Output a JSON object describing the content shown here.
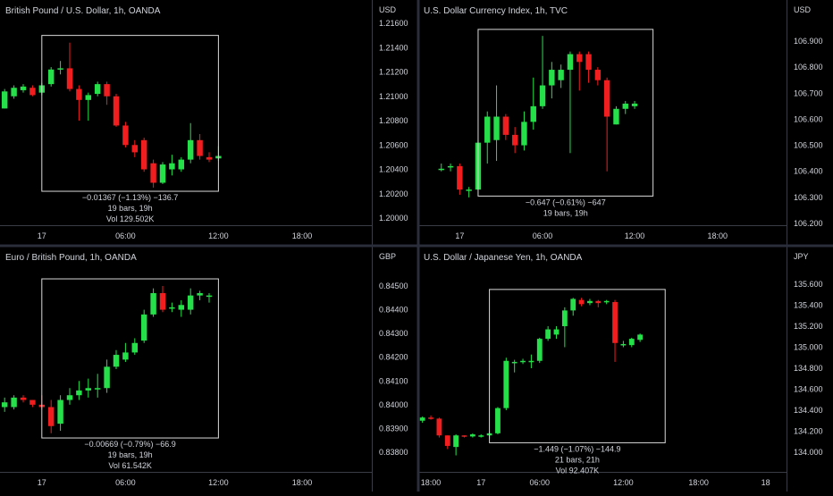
{
  "colors": {
    "background": "#000000",
    "text": "#d1d4dc",
    "axis_line": "#3a3d46",
    "divider": "#2a2d3a",
    "up": "#26e04a",
    "down": "#f01e1e",
    "box": "#d9d9d9"
  },
  "chart_data": [
    {
      "type": "candlestick",
      "title": "British Pound / U.S. Dollar, 1h, OANDA",
      "currency": "USD",
      "ylim": [
        1.198,
        1.218
      ],
      "yticks": [
        "1.21600",
        "1.21400",
        "1.21200",
        "1.21000",
        "1.20800",
        "1.20600",
        "1.20400",
        "1.20200",
        "1.20000"
      ],
      "ytick_values": [
        1.216,
        1.214,
        1.212,
        1.21,
        1.208,
        1.206,
        1.204,
        1.202,
        1.2
      ],
      "xticks": [
        "17",
        "06:00",
        "12:00",
        "18:00"
      ],
      "xtick_index": [
        4,
        13,
        23,
        32
      ],
      "n_slots": 40,
      "candles": [
        [
          1.209,
          1.2104,
          1.209,
          1.2106
        ],
        [
          1.21,
          1.2107,
          1.2098,
          1.2109
        ],
        [
          1.2105,
          1.2108,
          1.2103,
          1.211
        ],
        [
          1.2107,
          1.2101,
          1.21,
          1.2109
        ],
        [
          1.2103,
          1.2109,
          1.2101,
          1.2111
        ],
        [
          1.211,
          1.2122,
          1.2108,
          1.2124
        ],
        [
          1.2122,
          1.2123,
          1.2118,
          1.2129
        ],
        [
          1.2123,
          1.2106,
          1.2104,
          1.2144
        ],
        [
          1.2106,
          1.2097,
          1.208,
          1.2109
        ],
        [
          1.2097,
          1.2101,
          1.208,
          1.2103
        ],
        [
          1.2102,
          1.211,
          1.21,
          1.2112
        ],
        [
          1.211,
          1.21,
          1.2093,
          1.2112
        ],
        [
          1.21,
          1.2076,
          1.2075,
          1.2102
        ],
        [
          1.2076,
          1.206,
          1.2058,
          1.2079
        ],
        [
          1.206,
          1.2054,
          1.205,
          1.2064
        ],
        [
          1.2064,
          1.204,
          1.2038,
          1.2066
        ],
        [
          1.2045,
          1.2029,
          1.2025,
          1.2048
        ],
        [
          1.2029,
          1.2044,
          1.2028,
          1.2046
        ],
        [
          1.204,
          1.2045,
          1.2035,
          1.2052
        ],
        [
          1.204,
          1.2048,
          1.2038,
          1.205
        ],
        [
          1.2048,
          1.2064,
          1.2045,
          1.2078
        ],
        [
          1.2064,
          1.2051,
          1.2048,
          1.2069
        ],
        [
          1.205,
          1.2048,
          1.2046,
          1.2054
        ],
        [
          1.2049,
          1.2051,
          1.2047,
          1.2059
        ]
      ],
      "candle_start_slot": 0,
      "measure": {
        "box_slots": [
          4,
          23
        ],
        "box_prices": [
          1.2022,
          1.215
        ],
        "lines": [
          "−0.01367 (−1.13%) −136.7",
          "19 bars, 19h",
          "Vol 129.502K"
        ]
      }
    },
    {
      "type": "candlestick",
      "title": "U.S. Dollar Currency Index, 1h, TVC",
      "currency": "USD",
      "ylim": [
        106.19,
        107.02
      ],
      "yticks": [
        "106.900",
        "106.800",
        "106.700",
        "106.600",
        "106.500",
        "106.400",
        "106.300",
        "106.200"
      ],
      "ytick_values": [
        106.9,
        106.8,
        106.7,
        106.6,
        106.5,
        106.4,
        106.3,
        106.2
      ],
      "xticks": [
        "17",
        "06:00",
        "12:00",
        "18:00"
      ],
      "xtick_index": [
        4,
        13,
        23,
        32
      ],
      "n_slots": 40,
      "candles": [
        [
          106.41,
          106.41,
          106.4,
          106.43
        ],
        [
          106.42,
          106.42,
          106.4,
          106.43
        ],
        [
          106.42,
          106.33,
          106.31,
          106.43
        ],
        [
          106.33,
          106.33,
          106.3,
          106.34
        ],
        [
          106.33,
          106.51,
          106.33,
          106.52
        ],
        [
          106.51,
          106.61,
          106.43,
          106.63
        ],
        [
          106.52,
          106.61,
          106.44,
          106.73
        ],
        [
          106.61,
          106.54,
          106.52,
          106.62
        ],
        [
          106.54,
          106.5,
          106.47,
          106.57
        ],
        [
          106.5,
          106.59,
          106.48,
          106.63
        ],
        [
          106.59,
          106.65,
          106.56,
          106.76
        ],
        [
          106.65,
          106.73,
          106.64,
          106.92
        ],
        [
          106.73,
          106.79,
          106.68,
          106.82
        ],
        [
          106.75,
          106.79,
          106.72,
          106.81
        ],
        [
          106.79,
          106.85,
          106.47,
          106.86
        ],
        [
          106.85,
          106.82,
          106.71,
          106.86
        ],
        [
          106.85,
          106.79,
          106.74,
          106.86
        ],
        [
          106.79,
          106.75,
          106.73,
          106.8
        ],
        [
          106.75,
          106.61,
          106.4,
          106.76
        ],
        [
          106.58,
          106.64,
          106.58,
          106.65
        ],
        [
          106.64,
          106.66,
          106.62,
          106.67
        ],
        [
          106.65,
          106.66,
          106.64,
          106.67
        ]
      ],
      "candle_start_slot": 2,
      "measure": {
        "box_slots": [
          6,
          25
        ],
        "box_prices": [
          106.305,
          106.945
        ],
        "lines": [
          "−0.647 (−0.61%) −647",
          "19 bars, 19h"
        ]
      }
    },
    {
      "type": "candlestick",
      "title": "Euro / British Pound, 1h, OANDA",
      "currency": "GBP",
      "ylim": [
        0.8375,
        0.8454
      ],
      "yticks": [
        "0.84500",
        "0.84400",
        "0.84300",
        "0.84200",
        "0.84100",
        "0.84000",
        "0.83900",
        "0.83800"
      ],
      "ytick_values": [
        0.845,
        0.844,
        0.843,
        0.842,
        0.841,
        0.84,
        0.839,
        0.838
      ],
      "xticks": [
        "17",
        "06:00",
        "12:00",
        "18:00"
      ],
      "xtick_index": [
        4,
        13,
        23,
        32
      ],
      "n_slots": 40,
      "candles": [
        [
          0.8399,
          0.8401,
          0.8397,
          0.8403
        ],
        [
          0.8399,
          0.8403,
          0.8398,
          0.8404
        ],
        [
          0.8403,
          0.8402,
          0.8401,
          0.8404
        ],
        [
          0.8402,
          0.84,
          0.8399,
          0.8402
        ],
        [
          0.84,
          0.8399,
          0.8398,
          0.8404
        ],
        [
          0.8399,
          0.8391,
          0.8388,
          0.8402
        ],
        [
          0.8392,
          0.8402,
          0.8389,
          0.8404
        ],
        [
          0.8402,
          0.8404,
          0.84,
          0.8407
        ],
        [
          0.8404,
          0.8406,
          0.8402,
          0.841
        ],
        [
          0.8406,
          0.8407,
          0.8403,
          0.8411
        ],
        [
          0.8407,
          0.8407,
          0.8403,
          0.8413
        ],
        [
          0.8407,
          0.8416,
          0.8405,
          0.8419
        ],
        [
          0.8416,
          0.8421,
          0.8415,
          0.8423
        ],
        [
          0.8419,
          0.8422,
          0.8418,
          0.8426
        ],
        [
          0.8422,
          0.8426,
          0.8421,
          0.8428
        ],
        [
          0.8427,
          0.8438,
          0.8426,
          0.844
        ],
        [
          0.8438,
          0.8447,
          0.8437,
          0.8449
        ],
        [
          0.8447,
          0.844,
          0.8439,
          0.845
        ],
        [
          0.8441,
          0.8441,
          0.8439,
          0.8443
        ],
        [
          0.844,
          0.8442,
          0.8437,
          0.8444
        ],
        [
          0.844,
          0.8446,
          0.8438,
          0.8449
        ],
        [
          0.8446,
          0.8447,
          0.8444,
          0.8448
        ],
        [
          0.8446,
          0.8446,
          0.8443,
          0.8447
        ]
      ],
      "candle_start_slot": 0,
      "measure": {
        "box_slots": [
          4,
          23
        ],
        "box_prices": [
          0.8386,
          0.8453
        ],
        "lines": [
          "−0.00669 (−0.79%) −66.9",
          "19 bars, 19h",
          "Vol 61.542K"
        ]
      }
    },
    {
      "type": "candlestick",
      "title": "U.S. Dollar / Japanese Yen, 1h, OANDA",
      "currency": "JPY",
      "ylim": [
        133.9,
        135.7
      ],
      "yticks": [
        "135.600",
        "135.400",
        "135.200",
        "135.000",
        "134.800",
        "134.600",
        "134.400",
        "134.200",
        "134.000"
      ],
      "ytick_values": [
        135.6,
        135.4,
        135.2,
        135.0,
        134.8,
        134.6,
        134.4,
        134.2,
        134.0
      ],
      "xticks": [
        "18:00",
        "17",
        "06:00",
        "12:00",
        "18:00",
        "18"
      ],
      "xtick_index": [
        1,
        7,
        14,
        24,
        33,
        41
      ],
      "n_slots": 44,
      "candles": [
        [
          134.3,
          134.33,
          134.28,
          134.34
        ],
        [
          134.33,
          134.32,
          134.31,
          134.35
        ],
        [
          134.32,
          134.16,
          134.14,
          134.33
        ],
        [
          134.16,
          134.06,
          134.03,
          134.16
        ],
        [
          134.05,
          134.16,
          133.97,
          134.17
        ],
        [
          134.16,
          134.15,
          134.14,
          134.16
        ],
        [
          134.15,
          134.17,
          134.14,
          134.18
        ],
        [
          134.15,
          134.16,
          134.14,
          134.17
        ],
        [
          134.16,
          134.18,
          134.13,
          134.2
        ],
        [
          134.18,
          134.42,
          134.17,
          134.43
        ],
        [
          134.42,
          134.87,
          134.4,
          134.9
        ],
        [
          134.85,
          134.86,
          134.76,
          134.88
        ],
        [
          134.86,
          134.87,
          134.84,
          134.89
        ],
        [
          134.86,
          134.87,
          134.8,
          134.93
        ],
        [
          134.87,
          135.08,
          134.85,
          135.09
        ],
        [
          135.08,
          135.17,
          135.06,
          135.2
        ],
        [
          135.12,
          135.17,
          135.08,
          135.2
        ],
        [
          135.2,
          135.35,
          135.0,
          135.38
        ],
        [
          135.35,
          135.46,
          135.3,
          135.47
        ],
        [
          135.45,
          135.41,
          135.39,
          135.47
        ],
        [
          135.42,
          135.44,
          135.4,
          135.46
        ],
        [
          135.44,
          135.42,
          135.38,
          135.45
        ],
        [
          135.43,
          135.44,
          135.41,
          135.45
        ],
        [
          135.43,
          135.04,
          134.86,
          135.45
        ],
        [
          135.03,
          135.03,
          135.0,
          135.06
        ],
        [
          135.02,
          135.08,
          135.0,
          135.09
        ],
        [
          135.07,
          135.12,
          135.05,
          135.13
        ]
      ],
      "candle_start_slot": 0,
      "measure": {
        "box_slots": [
          8,
          29
        ],
        "box_prices": [
          134.09,
          135.55
        ],
        "lines": [
          "−1.449 (−1.07%) −144.9",
          "21 bars, 21h",
          "Vol 92.407K"
        ]
      }
    }
  ]
}
